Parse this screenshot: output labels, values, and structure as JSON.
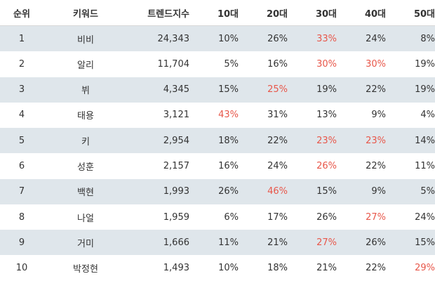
{
  "table": {
    "headers": {
      "rank": "순위",
      "keyword": "키워드",
      "trend": "트렌드지수",
      "p10": "10대",
      "p20": "20대",
      "p30": "30대",
      "p40": "40대",
      "p50": "50대"
    },
    "highlight_color": "#e8574a",
    "shade_color": "#dfe6eb",
    "rows": [
      {
        "rank": "1",
        "keyword": "비비",
        "trend": "24,343",
        "p10": "10%",
        "p20": "26%",
        "p30": "33%",
        "p40": "24%",
        "p50": "8%",
        "highlight": [
          "p30"
        ]
      },
      {
        "rank": "2",
        "keyword": "알리",
        "trend": "11,704",
        "p10": "5%",
        "p20": "16%",
        "p30": "30%",
        "p40": "30%",
        "p50": "19%",
        "highlight": [
          "p30",
          "p40"
        ]
      },
      {
        "rank": "3",
        "keyword": "뷔",
        "trend": "4,345",
        "p10": "15%",
        "p20": "25%",
        "p30": "19%",
        "p40": "22%",
        "p50": "19%",
        "highlight": [
          "p20"
        ]
      },
      {
        "rank": "4",
        "keyword": "태용",
        "trend": "3,121",
        "p10": "43%",
        "p20": "31%",
        "p30": "13%",
        "p40": "9%",
        "p50": "4%",
        "highlight": [
          "p10"
        ]
      },
      {
        "rank": "5",
        "keyword": "키",
        "trend": "2,954",
        "p10": "18%",
        "p20": "22%",
        "p30": "23%",
        "p40": "23%",
        "p50": "14%",
        "highlight": [
          "p30",
          "p40"
        ]
      },
      {
        "rank": "6",
        "keyword": "성훈",
        "trend": "2,157",
        "p10": "16%",
        "p20": "24%",
        "p30": "26%",
        "p40": "22%",
        "p50": "11%",
        "highlight": [
          "p30"
        ]
      },
      {
        "rank": "7",
        "keyword": "백현",
        "trend": "1,993",
        "p10": "26%",
        "p20": "46%",
        "p30": "15%",
        "p40": "9%",
        "p50": "5%",
        "highlight": [
          "p20"
        ]
      },
      {
        "rank": "8",
        "keyword": "나얼",
        "trend": "1,959",
        "p10": "6%",
        "p20": "17%",
        "p30": "26%",
        "p40": "27%",
        "p50": "24%",
        "highlight": [
          "p40"
        ]
      },
      {
        "rank": "9",
        "keyword": "거미",
        "trend": "1,666",
        "p10": "11%",
        "p20": "21%",
        "p30": "27%",
        "p40": "26%",
        "p50": "15%",
        "highlight": [
          "p30"
        ]
      },
      {
        "rank": "10",
        "keyword": "박정현",
        "trend": "1,493",
        "p10": "10%",
        "p20": "18%",
        "p30": "21%",
        "p40": "22%",
        "p50": "29%",
        "highlight": [
          "p50"
        ]
      }
    ]
  }
}
